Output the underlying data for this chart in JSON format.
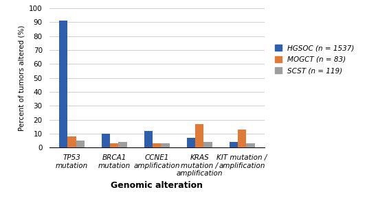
{
  "categories": [
    "TP53\nmutation",
    "BRCA1\nmutation",
    "CCNE1\namplification",
    "KRAS\nmutation /\namplification",
    "KIT mutation /\namplification"
  ],
  "HGSOC": [
    91,
    10,
    12,
    7,
    4
  ],
  "MOGCT": [
    8,
    3,
    3,
    17,
    13
  ],
  "SCST": [
    5,
    4,
    3,
    4,
    3
  ],
  "colors": {
    "HGSOC": "#2E5FAC",
    "MOGCT": "#E07A38",
    "SCST": "#9E9E9E"
  },
  "legend_labels": [
    "HGSOC (n = 1537)",
    "MOGCT (n = 83)",
    "SCST (n = 119)"
  ],
  "ylabel": "Percent of tumors altered (%)",
  "xlabel": "Genomic alteration",
  "ylim": [
    0,
    100
  ],
  "yticks": [
    0,
    10,
    20,
    30,
    40,
    50,
    60,
    70,
    80,
    90,
    100
  ],
  "bar_width": 0.2,
  "background_color": "#ffffff",
  "grid_color": "#D0D0D0"
}
